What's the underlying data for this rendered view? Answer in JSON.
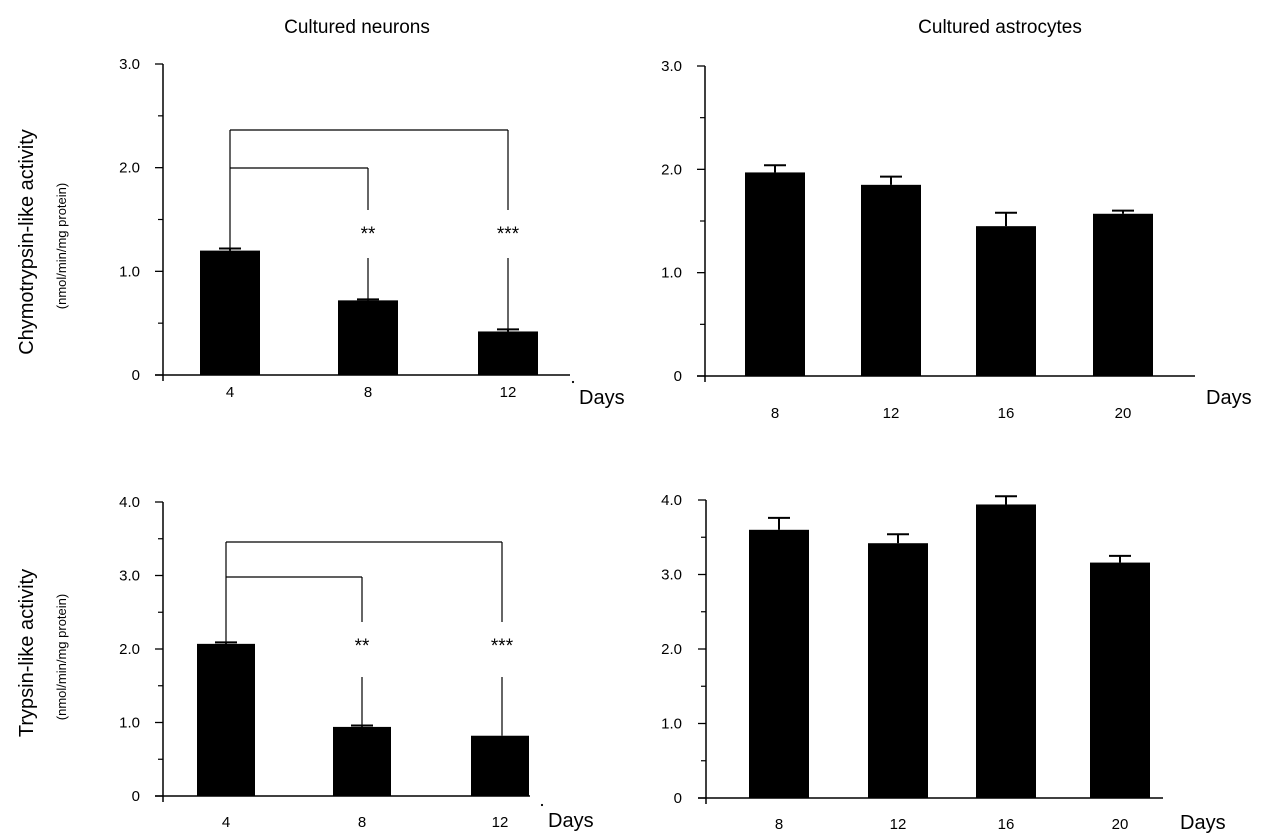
{
  "titles": {
    "neurons": "Cultured neurons",
    "astrocytes": "Cultured astrocytes"
  },
  "row_labels": {
    "chymotrypsin": {
      "main": "Chymotrypsin-like activity",
      "unit": "(nmol/min/mg protein)"
    },
    "trypsin": {
      "main": "Trypsin-like activity",
      "unit": "(nmol/min/mg protein)"
    }
  },
  "chart_data": [
    {
      "type": "bar",
      "title": "Cultured neurons",
      "ylabel": "Chymotrypsin-like activity (nmol/min/mg protein)",
      "xlabel": "Days",
      "categories": [
        "4",
        "8",
        "12"
      ],
      "values": [
        1.2,
        0.72,
        0.42
      ],
      "errors": [
        0.02,
        0.01,
        0.02
      ],
      "yticks": [
        "0",
        "1.0",
        "2.0",
        "3.0"
      ],
      "ylim": [
        0,
        3
      ],
      "grid": false,
      "significance": [
        {
          "compare": [
            "4",
            "8"
          ],
          "label": "**"
        },
        {
          "compare": [
            "4",
            "12"
          ],
          "label": "***"
        }
      ]
    },
    {
      "type": "bar",
      "title": "Cultured astrocytes",
      "xlabel": "Days",
      "categories": [
        "8",
        "12",
        "16",
        "20"
      ],
      "values": [
        1.97,
        1.85,
        1.45,
        1.57
      ],
      "errors": [
        0.07,
        0.08,
        0.13,
        0.03
      ],
      "yticks": [
        "0",
        "1.0",
        "2.0",
        "3.0"
      ],
      "ylim": [
        0,
        3
      ],
      "grid": false
    },
    {
      "type": "bar",
      "ylabel": "Trypsin-like activity (nmol/min/mg protein)",
      "xlabel": "Days",
      "categories": [
        "4",
        "8",
        "12"
      ],
      "values": [
        2.07,
        0.94,
        0.82
      ],
      "errors": [
        0.02,
        0.02,
        0.0
      ],
      "yticks": [
        "0",
        "1.0",
        "2.0",
        "3.0",
        "4.0"
      ],
      "ylim": [
        0,
        4
      ],
      "grid": false,
      "significance": [
        {
          "compare": [
            "4",
            "8"
          ],
          "label": "**"
        },
        {
          "compare": [
            "4",
            "12"
          ],
          "label": "***"
        }
      ]
    },
    {
      "type": "bar",
      "xlabel": "Days",
      "categories": [
        "8",
        "12",
        "16",
        "20"
      ],
      "values": [
        3.6,
        3.42,
        3.94,
        3.16
      ],
      "errors": [
        0.16,
        0.12,
        0.11,
        0.09
      ],
      "yticks": [
        "0",
        "1.0",
        "2.0",
        "3.0",
        "4.0"
      ],
      "ylim": [
        0,
        4
      ],
      "grid": false
    }
  ]
}
